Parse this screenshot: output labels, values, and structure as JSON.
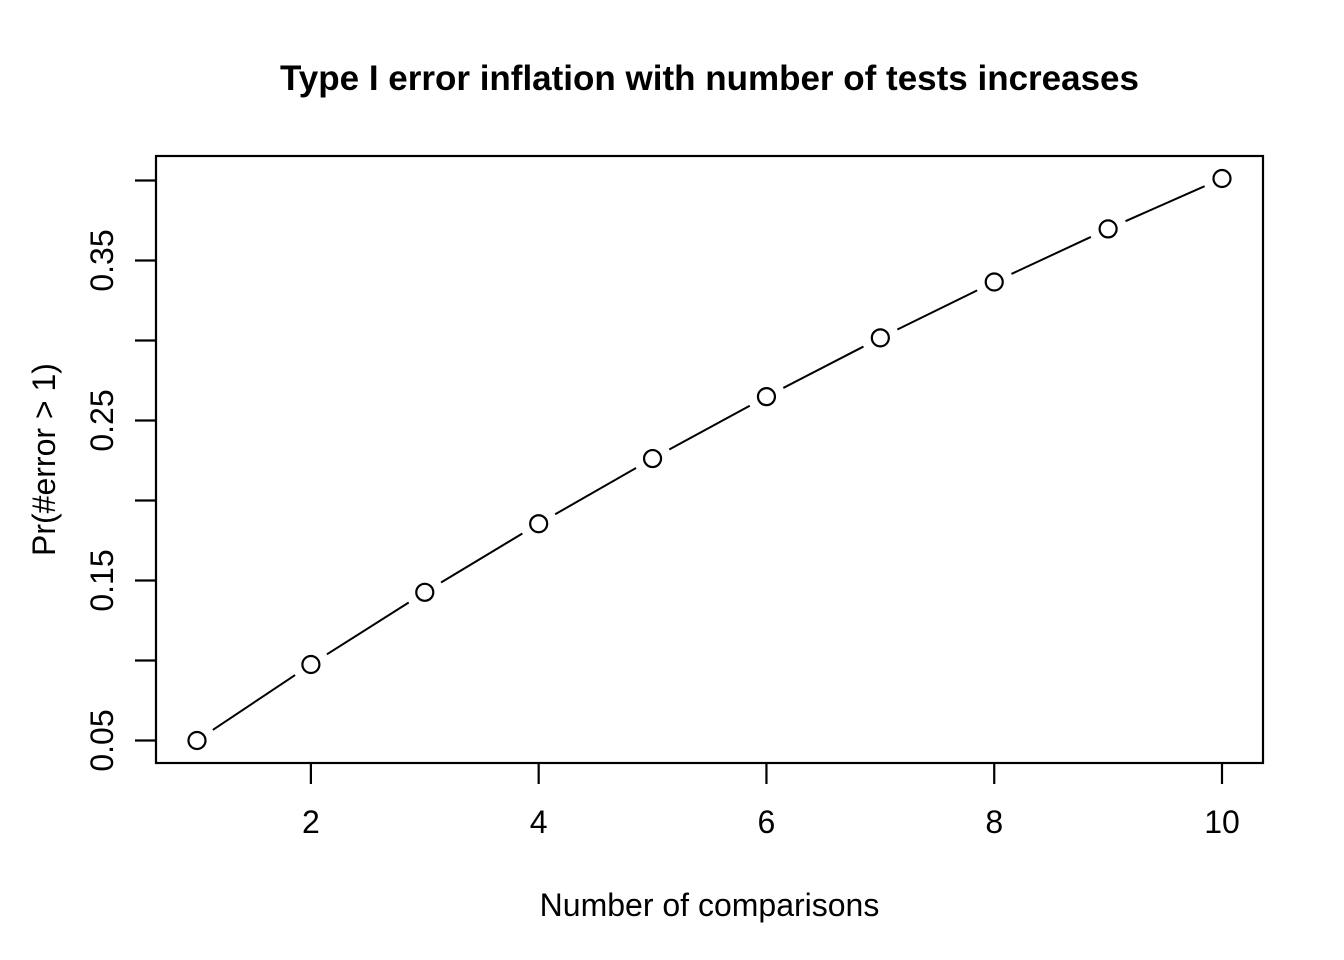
{
  "chart_data": {
    "type": "line",
    "title": "Type I error inflation with number of tests increases",
    "xlabel": "Number of comparisons",
    "ylabel": "Pr(#error > 1)",
    "x": [
      1,
      2,
      3,
      4,
      5,
      6,
      7,
      8,
      9,
      10
    ],
    "y": [
      0.05,
      0.0975,
      0.142625,
      0.185494,
      0.226219,
      0.264908,
      0.301663,
      0.33658,
      0.369751,
      0.401263
    ],
    "xlim": [
      0.64,
      10.36
    ],
    "ylim": [
      0.035949,
      0.415314
    ],
    "x_ticks": [
      {
        "v": 2,
        "label": "2"
      },
      {
        "v": 4,
        "label": "4"
      },
      {
        "v": 6,
        "label": "6"
      },
      {
        "v": 8,
        "label": "8"
      },
      {
        "v": 10,
        "label": "10"
      }
    ],
    "y_ticks": [
      {
        "v": 0.05,
        "label": "0.05"
      },
      {
        "v": 0.1,
        "label": ""
      },
      {
        "v": 0.15,
        "label": "0.15"
      },
      {
        "v": 0.2,
        "label": ""
      },
      {
        "v": 0.25,
        "label": "0.25"
      },
      {
        "v": 0.3,
        "label": ""
      },
      {
        "v": 0.35,
        "label": "0.35"
      },
      {
        "v": 0.4,
        "label": ""
      }
    ],
    "marker": "open-circle",
    "line_style": "solid-with-gaps",
    "grid": false,
    "legend_position": "none",
    "colors": {
      "foreground": "#000000",
      "background": "#ffffff"
    }
  }
}
